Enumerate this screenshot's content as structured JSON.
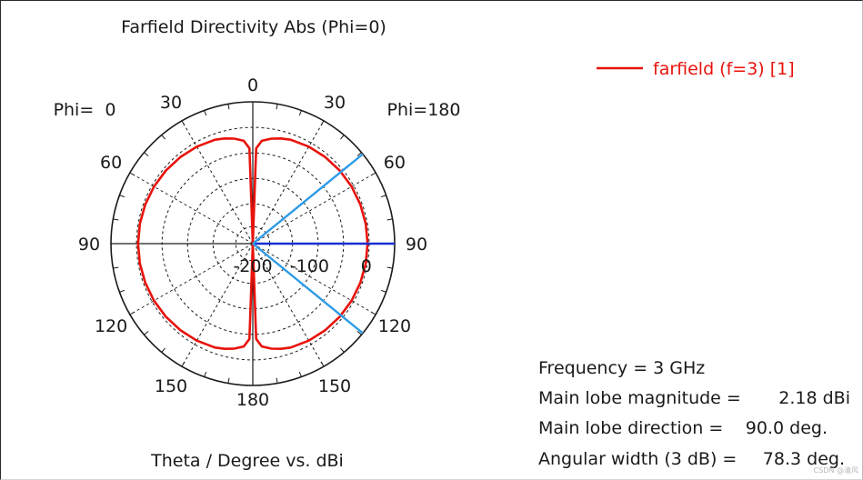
{
  "chart_data": {
    "type": "polar",
    "title": "Farfield Directivity Abs (Phi=0)",
    "xlabel": "Theta / Degree vs. dBi",
    "left_label": "Phi=  0",
    "right_label": "Phi=180",
    "angle_ticks_left": [
      {
        "angle": 0,
        "label": "0"
      },
      {
        "angle": 30,
        "label": "30"
      },
      {
        "angle": 60,
        "label": "60"
      },
      {
        "angle": 90,
        "label": "90"
      },
      {
        "angle": 120,
        "label": "120"
      },
      {
        "angle": 150,
        "label": "150"
      },
      {
        "angle": 180,
        "label": "180"
      }
    ],
    "angle_ticks_right": [
      {
        "angle": 30,
        "label": "30"
      },
      {
        "angle": 60,
        "label": "60"
      },
      {
        "angle": 90,
        "label": "90"
      },
      {
        "angle": 120,
        "label": "120"
      },
      {
        "angle": 150,
        "label": "150"
      }
    ],
    "radial_ticks": [
      {
        "value": -200,
        "label": "-200"
      },
      {
        "value": -100,
        "label": "-100"
      },
      {
        "value": 0,
        "label": "0"
      }
    ],
    "rlim": [
      -200,
      50
    ],
    "grid": true,
    "series": [
      {
        "name": "farfield (f=3) [1]",
        "color": "#e8120c",
        "theta": [
          0,
          2,
          5,
          10,
          15,
          20,
          30,
          40,
          50,
          60,
          70,
          80,
          90,
          100,
          110,
          120,
          130,
          140,
          150,
          160,
          165,
          170,
          175,
          178,
          180
        ],
        "r_dbi": [
          -199,
          -32,
          -18,
          -12,
          -8,
          -5,
          -2.5,
          -1.0,
          0.3,
          1.1,
          1.7,
          2.05,
          2.18,
          2.05,
          1.7,
          1.1,
          0.3,
          -1.0,
          -2.5,
          -5,
          -8,
          -12,
          -18,
          -32,
          -199
        ]
      }
    ],
    "markers": {
      "main_lobe_direction": 90.0,
      "main_lobe_color": "#1a2fd0",
      "beamwidth_start": 50.85,
      "beamwidth_end": 129.15,
      "beamwidth_color": "#2e9be6"
    }
  },
  "legend": {
    "label": "farfield (f=3) [1]",
    "color": "#e8120c"
  },
  "info": {
    "frequency": "Frequency = 3 GHz",
    "lobe_mag_label": "Main lobe magnitude =",
    "lobe_mag_value": "2.18 dBi",
    "lobe_dir_label": "Main lobe direction =",
    "lobe_dir_value": "90.0 deg.",
    "angular_width_label": "Angular width (3 dB) =",
    "angular_width_value": "78.3 deg."
  },
  "watermark": "CSDN @清风"
}
